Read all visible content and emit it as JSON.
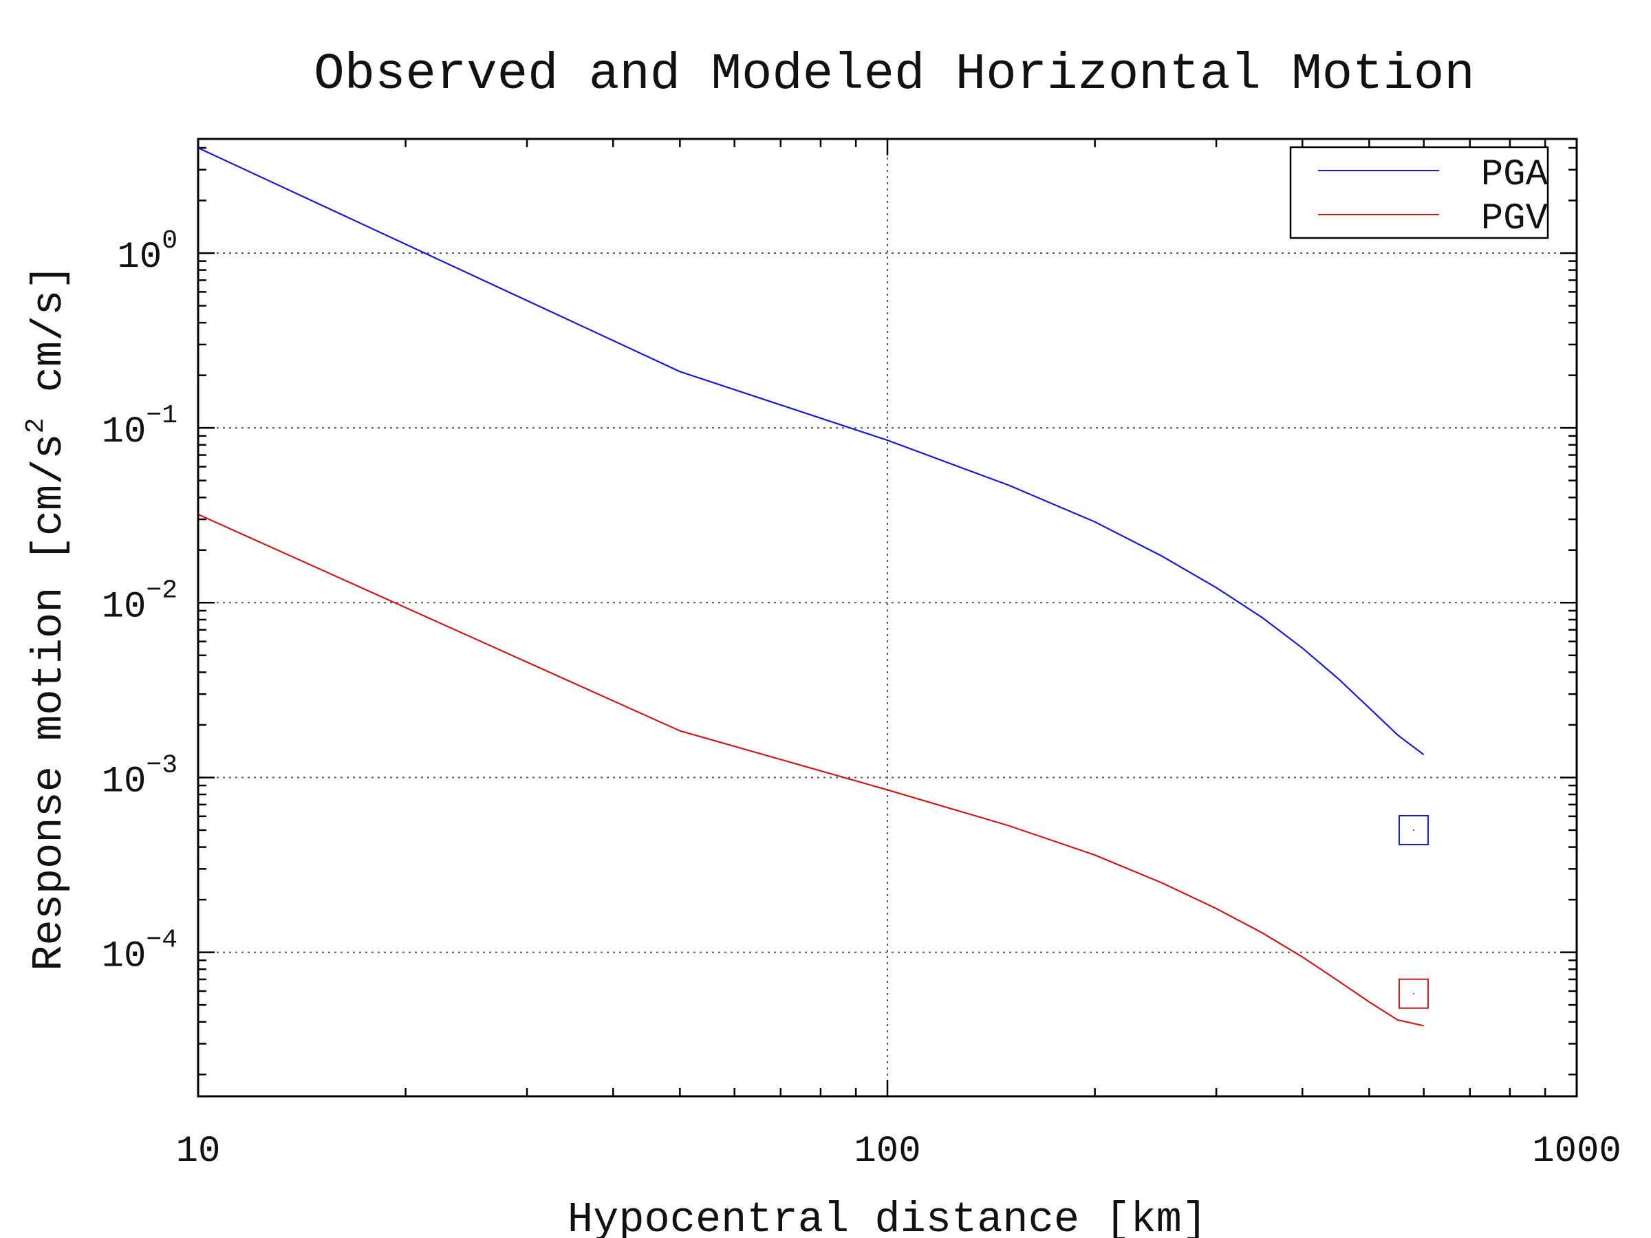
{
  "chart_data": {
    "type": "line",
    "title": "Observed and Modeled Horizontal Motion",
    "xlabel": "Hypocentral distance [km]",
    "ylabel_prefix": "Response motion [cm/s",
    "ylabel_sup": "2",
    "ylabel_suffix": "  cm/s]",
    "xscale": "log",
    "yscale": "log",
    "xlim": [
      10,
      1000
    ],
    "ylim": [
      1.5e-05,
      4.5
    ],
    "x_tick_labels": [
      "10",
      "100",
      "1000"
    ],
    "x_ticks": [
      10,
      100,
      1000
    ],
    "y_ticks": [
      {
        "base": "10",
        "exp": "0",
        "value": 1
      },
      {
        "base": "10",
        "exp": "−1",
        "value": 0.1
      },
      {
        "base": "10",
        "exp": "−2",
        "value": 0.01
      },
      {
        "base": "10",
        "exp": "−3",
        "value": 0.001
      },
      {
        "base": "10",
        "exp": "−4",
        "value": 0.0001
      }
    ],
    "grid": true,
    "legend_position": "top-right",
    "series": [
      {
        "name": "PGA",
        "color": "#1a1acc",
        "x": [
          10,
          50,
          100,
          150,
          200,
          250,
          300,
          350,
          400,
          450,
          500,
          550,
          600
        ],
        "y": [
          4.0,
          0.21,
          0.085,
          0.047,
          0.029,
          0.0185,
          0.0122,
          0.0082,
          0.0055,
          0.0037,
          0.0025,
          0.00175,
          0.00135
        ]
      },
      {
        "name": "PGV",
        "color": "#cc1a1a",
        "x": [
          10,
          50,
          100,
          150,
          200,
          250,
          300,
          350,
          400,
          450,
          500,
          550,
          600
        ],
        "y": [
          0.032,
          0.00185,
          0.00085,
          0.00053,
          0.00036,
          0.00025,
          0.000178,
          0.000129,
          9.4e-05,
          6.9e-05,
          5.2e-05,
          4.1e-05,
          3.8e-05
        ]
      }
    ],
    "observed": [
      {
        "series": "PGA",
        "x": 580,
        "y": 0.0005,
        "marker": "square",
        "color": "#1a1acc"
      },
      {
        "series": "PGV",
        "x": 580,
        "y": 5.8e-05,
        "marker": "square",
        "color": "#cc1a1a"
      }
    ]
  }
}
